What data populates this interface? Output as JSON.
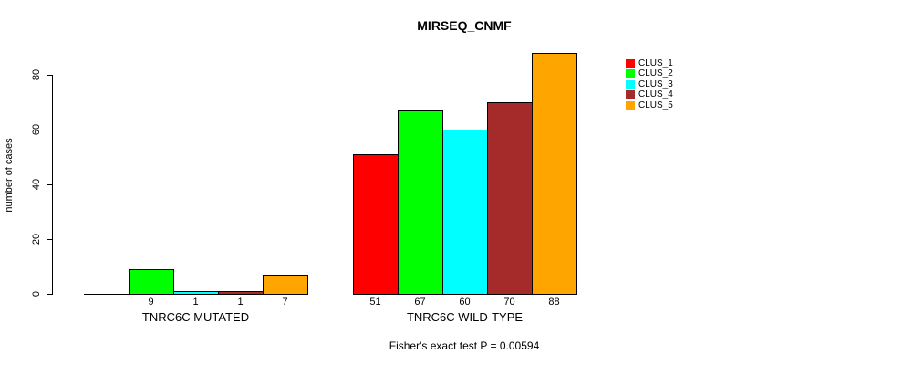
{
  "chart_data": {
    "type": "bar",
    "title": "MIRSEQ_CNMF",
    "xlabel": "",
    "ylabel": "number of cases",
    "ylim": [
      0,
      88
    ],
    "yticks": [
      0,
      20,
      40,
      60,
      80
    ],
    "grid": false,
    "legend_position": "right",
    "series": [
      {
        "name": "CLUS_1",
        "color": "#ff0000"
      },
      {
        "name": "CLUS_2",
        "color": "#00ff00"
      },
      {
        "name": "CLUS_3",
        "color": "#00ffff"
      },
      {
        "name": "CLUS_4",
        "color": "#a52a2a"
      },
      {
        "name": "CLUS_5",
        "color": "#ffa500"
      }
    ],
    "groups": [
      {
        "label": "TNRC6C MUTATED",
        "values": [
          0,
          9,
          1,
          1,
          7
        ],
        "bar_labels": [
          "",
          "9",
          "1",
          "1",
          "7"
        ]
      },
      {
        "label": "TNRC6C WILD-TYPE",
        "values": [
          51,
          67,
          60,
          70,
          88
        ],
        "bar_labels": [
          "51",
          "67",
          "60",
          "70",
          "88"
        ]
      }
    ],
    "annotation": "Fisher's exact test P = 0.00594"
  },
  "colors": {
    "axis": "#000000",
    "background": "#ffffff",
    "bar_border": "#000000"
  }
}
